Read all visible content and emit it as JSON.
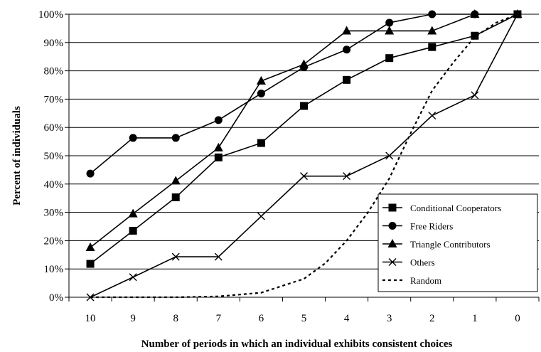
{
  "chart_data": {
    "type": "line",
    "xlabel": "Number of periods in which an individual exhibits consistent choices",
    "ylabel": "Percent of individuals",
    "categories": [
      "10",
      "9",
      "8",
      "7",
      "6",
      "5",
      "4",
      "3",
      "2",
      "1",
      "0"
    ],
    "y_ticks": [
      "0%",
      "10%",
      "20%",
      "30%",
      "40%",
      "50%",
      "60%",
      "70%",
      "80%",
      "90%",
      "100%"
    ],
    "ylim": [
      0,
      100
    ],
    "grid": "horizontal",
    "legend_position": "bottom-right",
    "series": [
      {
        "name": "Conditional Cooperators",
        "marker": "square",
        "dash": false,
        "values": [
          11.8,
          23.5,
          35.3,
          49.4,
          54.5,
          67.6,
          76.8,
          84.5,
          88.4,
          92.4,
          100
        ]
      },
      {
        "name": "Free Riders",
        "marker": "circle",
        "dash": false,
        "values": [
          43.7,
          56.3,
          56.3,
          62.6,
          72.0,
          81.3,
          87.5,
          97.0,
          100,
          100,
          100
        ]
      },
      {
        "name": "Triangle Contributors",
        "marker": "triangle",
        "dash": false,
        "values": [
          17.6,
          29.5,
          41.1,
          52.8,
          76.4,
          82.3,
          94.1,
          94.1,
          94.1,
          100,
          100
        ]
      },
      {
        "name": "Others",
        "marker": "x",
        "dash": false,
        "values": [
          0,
          7.1,
          14.3,
          14.3,
          28.6,
          42.8,
          42.8,
          50.0,
          64.2,
          71.4,
          100
        ]
      },
      {
        "name": "Random",
        "marker": "none",
        "dash": true,
        "curve": [
          [
            10,
            0
          ],
          [
            9,
            0
          ],
          [
            8,
            0
          ],
          [
            7,
            0.3
          ],
          [
            6,
            1.6
          ],
          [
            5,
            6.5
          ],
          [
            4.5,
            12
          ],
          [
            4,
            20
          ],
          [
            3.5,
            30
          ],
          [
            3,
            42
          ],
          [
            2.5,
            58
          ],
          [
            2,
            73
          ],
          [
            1.5,
            83
          ],
          [
            1,
            92
          ],
          [
            0.5,
            97
          ],
          [
            0,
            100
          ]
        ]
      }
    ]
  }
}
